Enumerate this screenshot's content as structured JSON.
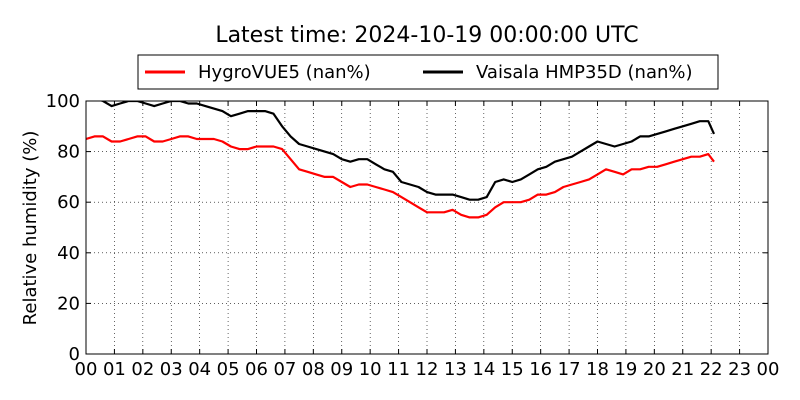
{
  "chart_data": {
    "type": "line",
    "title": "Latest time: 2024-10-19 00:00:00 UTC",
    "xlabel": "",
    "ylabel": "Relative humidity (%)",
    "xlim": [
      0,
      24
    ],
    "ylim": [
      0,
      100
    ],
    "x_ticks": [
      "00",
      "01",
      "02",
      "03",
      "04",
      "05",
      "06",
      "07",
      "08",
      "09",
      "10",
      "11",
      "12",
      "13",
      "14",
      "15",
      "16",
      "17",
      "18",
      "19",
      "20",
      "21",
      "22",
      "23",
      "00"
    ],
    "y_ticks": [
      "0",
      "20",
      "40",
      "60",
      "80",
      "100"
    ],
    "grid": true,
    "legend_position": "top",
    "series": [
      {
        "name": "HygroVUE5 (nan%)",
        "color": "#ff0000",
        "x": [
          0,
          0.3,
          0.6,
          0.9,
          1.2,
          1.5,
          1.8,
          2.1,
          2.4,
          2.7,
          3.0,
          3.3,
          3.6,
          3.9,
          4.2,
          4.5,
          4.8,
          5.1,
          5.4,
          5.7,
          6.0,
          6.3,
          6.6,
          6.9,
          7.2,
          7.5,
          7.8,
          8.1,
          8.4,
          8.7,
          9.0,
          9.3,
          9.6,
          9.9,
          10.2,
          10.5,
          10.8,
          11.1,
          11.4,
          11.7,
          12.0,
          12.3,
          12.6,
          12.9,
          13.2,
          13.5,
          13.8,
          14.1,
          14.4,
          14.7,
          15.0,
          15.3,
          15.6,
          15.9,
          16.2,
          16.5,
          16.8,
          17.1,
          17.4,
          17.7,
          18.0,
          18.3,
          18.6,
          18.9,
          19.2,
          19.5,
          19.8,
          20.1,
          20.4,
          20.7,
          21.0,
          21.3,
          21.6,
          21.9,
          22.1
        ],
        "y": [
          85,
          86,
          86,
          84,
          84,
          85,
          86,
          86,
          84,
          84,
          85,
          86,
          86,
          85,
          85,
          85,
          84,
          82,
          81,
          81,
          82,
          82,
          82,
          81,
          77,
          73,
          72,
          71,
          70,
          70,
          68,
          66,
          67,
          67,
          66,
          65,
          64,
          62,
          60,
          58,
          56,
          56,
          56,
          57,
          55,
          54,
          54,
          55,
          58,
          60,
          60,
          60,
          61,
          63,
          63,
          64,
          66,
          67,
          68,
          69,
          71,
          73,
          72,
          71,
          73,
          73,
          74,
          74,
          75,
          76,
          77,
          78,
          78,
          79,
          76
        ]
      },
      {
        "name": "Vaisala HMP35D (nan%)",
        "color": "#000000",
        "x": [
          0,
          0.3,
          0.6,
          0.9,
          1.2,
          1.5,
          1.8,
          2.1,
          2.4,
          2.7,
          3.0,
          3.3,
          3.6,
          3.9,
          4.2,
          4.5,
          4.8,
          5.1,
          5.4,
          5.7,
          6.0,
          6.3,
          6.6,
          6.9,
          7.2,
          7.5,
          7.8,
          8.1,
          8.4,
          8.7,
          9.0,
          9.3,
          9.6,
          9.9,
          10.2,
          10.5,
          10.8,
          11.1,
          11.4,
          11.7,
          12.0,
          12.3,
          12.6,
          12.9,
          13.2,
          13.5,
          13.8,
          14.1,
          14.4,
          14.7,
          15.0,
          15.3,
          15.6,
          15.9,
          16.2,
          16.5,
          16.8,
          17.1,
          17.4,
          17.7,
          18.0,
          18.3,
          18.6,
          18.9,
          19.2,
          19.5,
          19.8,
          20.1,
          20.4,
          20.7,
          21.0,
          21.3,
          21.6,
          21.9,
          22.1
        ],
        "y": [
          101,
          101,
          100,
          98,
          99,
          100,
          100,
          99,
          98,
          99,
          100,
          100,
          99,
          99,
          98,
          97,
          96,
          94,
          95,
          96,
          96,
          96,
          95,
          90,
          86,
          83,
          82,
          81,
          80,
          79,
          77,
          76,
          77,
          77,
          75,
          73,
          72,
          68,
          67,
          66,
          64,
          63,
          63,
          63,
          62,
          61,
          61,
          62,
          68,
          69,
          68,
          69,
          71,
          73,
          74,
          76,
          77,
          78,
          80,
          82,
          84,
          83,
          82,
          83,
          84,
          86,
          86,
          87,
          88,
          89,
          90,
          91,
          92,
          92,
          87
        ]
      }
    ]
  }
}
